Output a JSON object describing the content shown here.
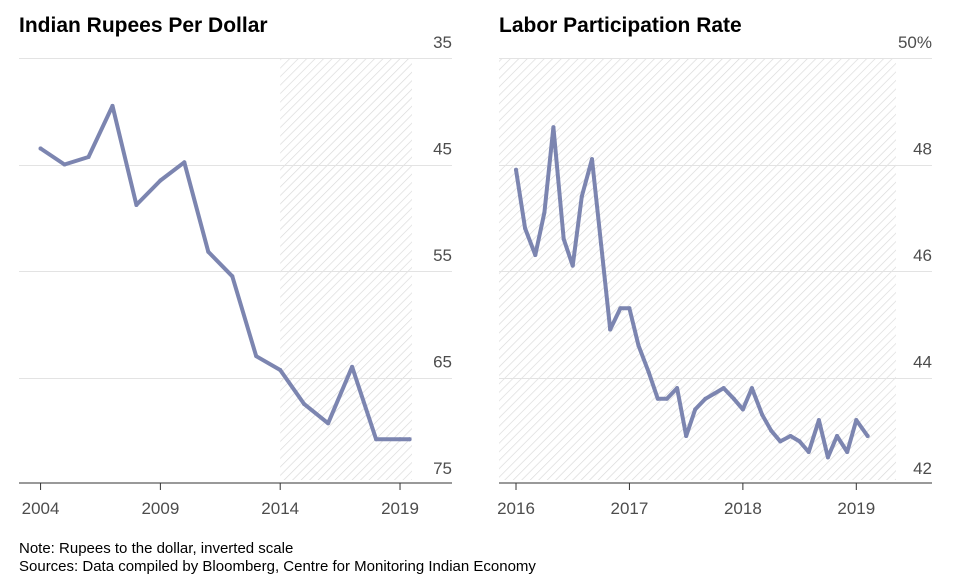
{
  "chart_data": [
    {
      "type": "line",
      "title": "Indian Rupees Per Dollar",
      "x_ticks": [
        "2004",
        "2009",
        "2014",
        "2019"
      ],
      "x_tick_values": [
        2004,
        2009,
        2014,
        2019
      ],
      "y_ticks": [
        "35",
        "45",
        "55",
        "65",
        "75"
      ],
      "y_tick_values": [
        35,
        45,
        55,
        65,
        75
      ],
      "ylim": [
        35,
        75
      ],
      "y_inverted": true,
      "xlim": [
        2003.1,
        2019.5
      ],
      "shaded_from": 2014,
      "line_color": "#7c85b0",
      "x": [
        2004,
        2005,
        2006,
        2007,
        2008,
        2009,
        2010,
        2011,
        2012,
        2013,
        2014,
        2015,
        2016,
        2017,
        2018,
        2019,
        2019.4
      ],
      "values": [
        45.0,
        46.5,
        45.8,
        41.0,
        50.3,
        48.0,
        46.3,
        54.7,
        57.0,
        64.5,
        65.8,
        69.0,
        70.8,
        65.5,
        72.3,
        72.3,
        72.3
      ]
    },
    {
      "type": "line",
      "title": "Labor Participation Rate",
      "x_ticks": [
        "2016",
        "2017",
        "2018",
        "2019"
      ],
      "x_tick_values": [
        2016,
        2017,
        2018,
        2019
      ],
      "y_ticks": [
        "42",
        "44",
        "46",
        "48",
        "50%"
      ],
      "y_tick_values": [
        42,
        44,
        46,
        48,
        50
      ],
      "ylim": [
        42,
        50
      ],
      "y_inverted": false,
      "xlim": [
        2015.85,
        2019.35
      ],
      "shaded_from": 2015.85,
      "line_color": "#7c85b0",
      "x": [
        2016.0,
        2016.08,
        2016.17,
        2016.25,
        2016.33,
        2016.42,
        2016.5,
        2016.58,
        2016.67,
        2016.75,
        2016.83,
        2016.92,
        2017.0,
        2017.08,
        2017.17,
        2017.25,
        2017.33,
        2017.42,
        2017.5,
        2017.58,
        2017.67,
        2017.75,
        2017.83,
        2017.92,
        2018.0,
        2018.08,
        2018.17,
        2018.25,
        2018.33,
        2018.42,
        2018.5,
        2018.58,
        2018.67,
        2018.75,
        2018.83,
        2018.92,
        2019.0,
        2019.1
      ],
      "values": [
        47.6,
        46.5,
        46.0,
        46.8,
        48.4,
        46.3,
        45.8,
        47.1,
        47.8,
        46.2,
        44.6,
        45.0,
        45.0,
        44.3,
        43.8,
        43.3,
        43.3,
        43.5,
        42.6,
        43.1,
        43.3,
        43.4,
        43.5,
        43.3,
        43.1,
        43.5,
        43.0,
        42.7,
        42.5,
        42.6,
        42.5,
        42.3,
        42.9,
        42.2,
        42.6,
        42.3,
        42.9,
        42.6
      ]
    }
  ],
  "footer": {
    "note": "Note: Rupees to the dollar, inverted scale",
    "sources": "Sources: Data compiled by Bloomberg, Centre for Monitoring Indian Economy"
  }
}
